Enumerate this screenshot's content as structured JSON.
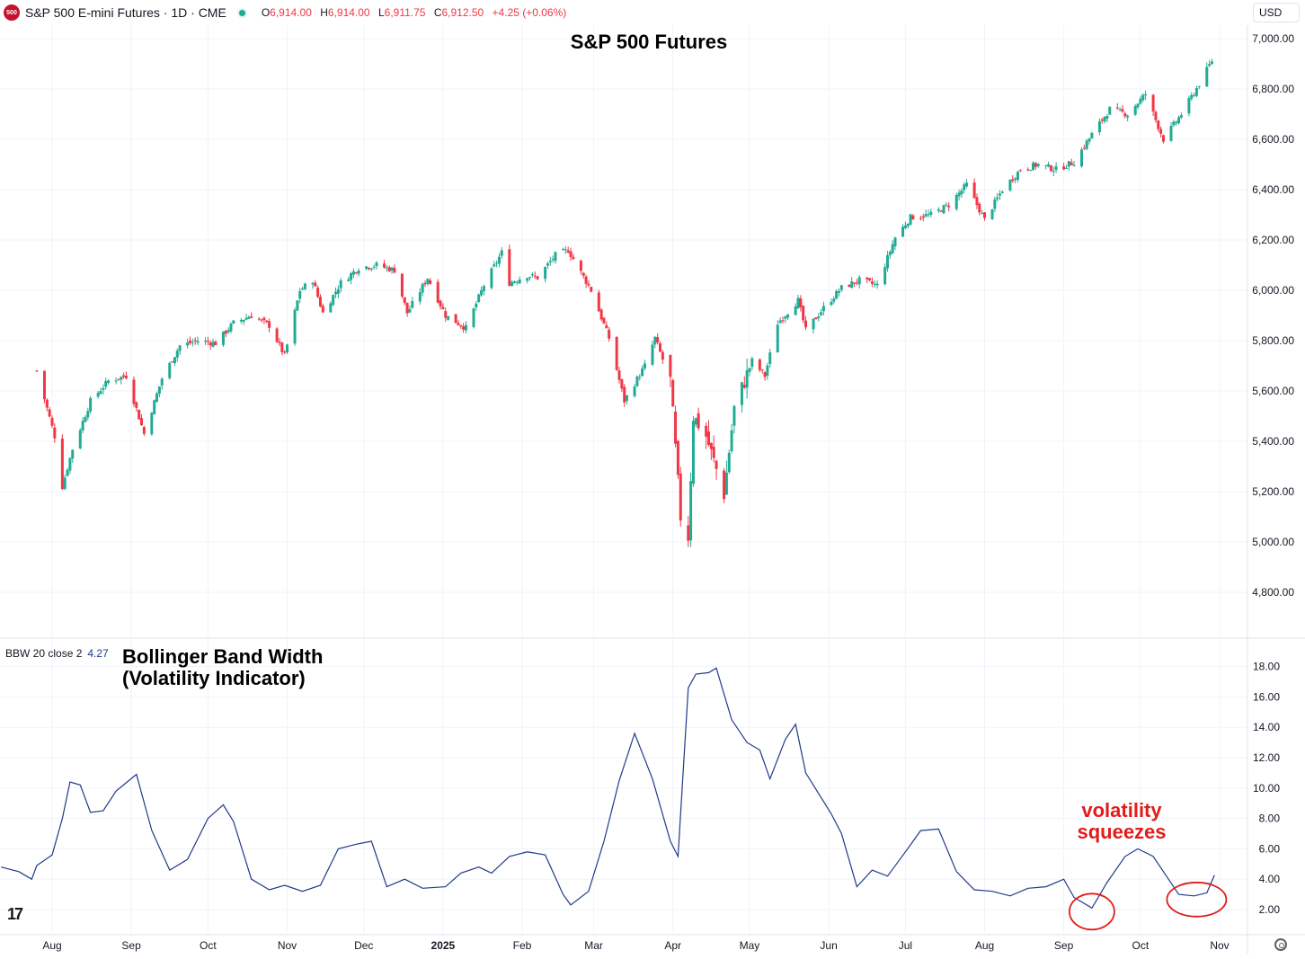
{
  "header": {
    "logo_text": "500",
    "symbol": "S&P 500 E-mini Futures · 1D · CME",
    "ohlc": [
      {
        "label": "O",
        "value": "6,914.00"
      },
      {
        "label": "H",
        "value": "6,914.00"
      },
      {
        "label": "L",
        "value": "6,911.75"
      },
      {
        "label": "C",
        "value": "6,912.50"
      }
    ],
    "change": "+4.25 (+0.06%)",
    "currency": "USD"
  },
  "indicator": {
    "label": "BBW 20 close 2",
    "value": "4.27"
  },
  "colors": {
    "up": "#22ab94",
    "down": "#f23645",
    "line": "#1e3a8a",
    "annotation": "#e21b1b",
    "grid": "#f0f3fa"
  },
  "chart_data": [
    {
      "type": "candlestick",
      "title": "S&P 500 Futures",
      "ylim": [
        4700,
        7060
      ],
      "y_ticks": [
        "7,000.00",
        "6,800.00",
        "6,600.00",
        "6,400.00",
        "6,200.00",
        "6,000.00",
        "5,800.00",
        "5,600.00",
        "5,400.00",
        "5,200.00",
        "5,000.00",
        "4,800.00"
      ],
      "x_ticks": [
        "Aug",
        "Sep",
        "Oct",
        "Nov",
        "Dec",
        "2025",
        "Feb",
        "Mar",
        "Apr",
        "May",
        "Jun",
        "Jul",
        "Aug",
        "Sep",
        "Oct",
        "Nov"
      ],
      "close_path": [
        [
          "2024-07-26",
          5680
        ],
        [
          "2024-08-02",
          5420
        ],
        [
          "2024-08-05",
          5220
        ],
        [
          "2024-08-09",
          5370
        ],
        [
          "2024-08-16",
          5560
        ],
        [
          "2024-08-23",
          5640
        ],
        [
          "2024-08-30",
          5660
        ],
        [
          "2024-09-06",
          5430
        ],
        [
          "2024-09-13",
          5650
        ],
        [
          "2024-09-20",
          5780
        ],
        [
          "2024-09-27",
          5800
        ],
        [
          "2024-10-04",
          5790
        ],
        [
          "2024-10-11",
          5870
        ],
        [
          "2024-10-18",
          5900
        ],
        [
          "2024-10-25",
          5860
        ],
        [
          "2024-10-31",
          5740
        ],
        [
          "2024-11-06",
          6000
        ],
        [
          "2024-11-11",
          6040
        ],
        [
          "2024-11-15",
          5910
        ],
        [
          "2024-11-22",
          6030
        ],
        [
          "2024-11-29",
          6090
        ],
        [
          "2024-12-06",
          6100
        ],
        [
          "2024-12-13",
          6080
        ],
        [
          "2024-12-18",
          5910
        ],
        [
          "2024-12-26",
          6050
        ],
        [
          "2025-01-02",
          5900
        ],
        [
          "2025-01-10",
          5850
        ],
        [
          "2025-01-17",
          6020
        ],
        [
          "2025-01-24",
          6150
        ],
        [
          "2025-01-27",
          6030
        ],
        [
          "2025-02-03",
          6060
        ],
        [
          "2025-02-07",
          6050
        ],
        [
          "2025-02-14",
          6140
        ],
        [
          "2025-02-19",
          6160
        ],
        [
          "2025-02-28",
          6000
        ],
        [
          "2025-03-07",
          5810
        ],
        [
          "2025-03-13",
          5560
        ],
        [
          "2025-03-21",
          5700
        ],
        [
          "2025-03-25",
          5810
        ],
        [
          "2025-03-31",
          5640
        ],
        [
          "2025-04-04",
          5100
        ],
        [
          "2025-04-07",
          5020
        ],
        [
          "2025-04-09",
          5500
        ],
        [
          "2025-04-14",
          5420
        ],
        [
          "2025-04-21",
          5190
        ],
        [
          "2025-04-25",
          5530
        ],
        [
          "2025-05-02",
          5720
        ],
        [
          "2025-05-07",
          5660
        ],
        [
          "2025-05-12",
          5870
        ],
        [
          "2025-05-20",
          5960
        ],
        [
          "2025-05-23",
          5840
        ],
        [
          "2025-05-30",
          5930
        ],
        [
          "2025-06-06",
          6010
        ],
        [
          "2025-06-13",
          6040
        ],
        [
          "2025-06-20",
          6020
        ],
        [
          "2025-06-27",
          6210
        ],
        [
          "2025-07-03",
          6290
        ],
        [
          "2025-07-11",
          6300
        ],
        [
          "2025-07-18",
          6340
        ],
        [
          "2025-07-25",
          6420
        ],
        [
          "2025-08-01",
          6280
        ],
        [
          "2025-08-08",
          6400
        ],
        [
          "2025-08-15",
          6480
        ],
        [
          "2025-08-22",
          6500
        ],
        [
          "2025-08-29",
          6480
        ],
        [
          "2025-09-05",
          6510
        ],
        [
          "2025-09-12",
          6620
        ],
        [
          "2025-09-19",
          6720
        ],
        [
          "2025-09-26",
          6700
        ],
        [
          "2025-10-03",
          6780
        ],
        [
          "2025-10-10",
          6600
        ],
        [
          "2025-10-17",
          6700
        ],
        [
          "2025-10-24",
          6820
        ],
        [
          "2025-10-29",
          6912.5
        ]
      ]
    },
    {
      "type": "line",
      "title": "Bollinger Band Width (Volatility Indicator)",
      "series_label": "BBW 20 close 2",
      "ylim": [
        1.0,
        19.0
      ],
      "y_ticks": [
        "18.00",
        "16.00",
        "14.00",
        "12.00",
        "10.00",
        "8.00",
        "6.00",
        "4.00",
        "2.00"
      ],
      "points": [
        [
          "2024-07-12",
          4.8
        ],
        [
          "2024-07-19",
          4.5
        ],
        [
          "2024-07-24",
          4.0
        ],
        [
          "2024-07-26",
          4.9
        ],
        [
          "2024-08-01",
          5.6
        ],
        [
          "2024-08-05",
          8.0
        ],
        [
          "2024-08-08",
          10.4
        ],
        [
          "2024-08-12",
          10.2
        ],
        [
          "2024-08-16",
          8.4
        ],
        [
          "2024-08-21",
          8.5
        ],
        [
          "2024-08-26",
          9.8
        ],
        [
          "2024-09-03",
          10.9
        ],
        [
          "2024-09-09",
          7.2
        ],
        [
          "2024-09-16",
          4.6
        ],
        [
          "2024-09-23",
          5.3
        ],
        [
          "2024-10-01",
          8.0
        ],
        [
          "2024-10-07",
          8.9
        ],
        [
          "2024-10-11",
          7.8
        ],
        [
          "2024-10-18",
          4.0
        ],
        [
          "2024-10-25",
          3.3
        ],
        [
          "2024-10-31",
          3.6
        ],
        [
          "2024-11-07",
          3.2
        ],
        [
          "2024-11-14",
          3.6
        ],
        [
          "2024-11-21",
          6.0
        ],
        [
          "2024-11-28",
          6.3
        ],
        [
          "2024-12-04",
          6.5
        ],
        [
          "2024-12-10",
          3.5
        ],
        [
          "2024-12-17",
          4.0
        ],
        [
          "2024-12-24",
          3.4
        ],
        [
          "2025-01-02",
          3.5
        ],
        [
          "2025-01-08",
          4.4
        ],
        [
          "2025-01-15",
          4.8
        ],
        [
          "2025-01-20",
          4.4
        ],
        [
          "2025-01-27",
          5.5
        ],
        [
          "2025-02-03",
          5.8
        ],
        [
          "2025-02-10",
          5.6
        ],
        [
          "2025-02-17",
          3.0
        ],
        [
          "2025-02-20",
          2.3
        ],
        [
          "2025-02-27",
          3.2
        ],
        [
          "2025-03-05",
          6.5
        ],
        [
          "2025-03-11",
          10.5
        ],
        [
          "2025-03-17",
          13.6
        ],
        [
          "2025-03-24",
          10.6
        ],
        [
          "2025-03-31",
          6.5
        ],
        [
          "2025-04-03",
          5.5
        ],
        [
          "2025-04-07",
          16.6
        ],
        [
          "2025-04-10",
          17.5
        ],
        [
          "2025-04-15",
          17.6
        ],
        [
          "2025-04-18",
          17.9
        ],
        [
          "2025-04-24",
          14.5
        ],
        [
          "2025-04-30",
          13.0
        ],
        [
          "2025-05-05",
          12.5
        ],
        [
          "2025-05-09",
          10.6
        ],
        [
          "2025-05-15",
          13.2
        ],
        [
          "2025-05-19",
          14.2
        ],
        [
          "2025-05-23",
          11.0
        ],
        [
          "2025-06-02",
          8.3
        ],
        [
          "2025-06-06",
          7.0
        ],
        [
          "2025-06-12",
          3.5
        ],
        [
          "2025-06-18",
          4.6
        ],
        [
          "2025-06-24",
          4.2
        ],
        [
          "2025-07-01",
          5.8
        ],
        [
          "2025-07-07",
          7.2
        ],
        [
          "2025-07-14",
          7.3
        ],
        [
          "2025-07-21",
          4.5
        ],
        [
          "2025-07-28",
          3.3
        ],
        [
          "2025-08-04",
          3.2
        ],
        [
          "2025-08-11",
          2.9
        ],
        [
          "2025-08-18",
          3.4
        ],
        [
          "2025-08-25",
          3.5
        ],
        [
          "2025-09-01",
          4.0
        ],
        [
          "2025-09-05",
          2.8
        ],
        [
          "2025-09-12",
          2.1
        ],
        [
          "2025-09-18",
          3.8
        ],
        [
          "2025-09-25",
          5.5
        ],
        [
          "2025-09-30",
          6.0
        ],
        [
          "2025-10-06",
          5.5
        ],
        [
          "2025-10-10",
          4.5
        ],
        [
          "2025-10-16",
          3.0
        ],
        [
          "2025-10-22",
          2.9
        ],
        [
          "2025-10-27",
          3.1
        ],
        [
          "2025-10-30",
          4.27
        ]
      ],
      "annotation": {
        "text_line1": "volatility",
        "text_line2": "squeezes",
        "circled_periods": [
          "2025-09-12",
          "2025-10-23"
        ]
      }
    }
  ]
}
